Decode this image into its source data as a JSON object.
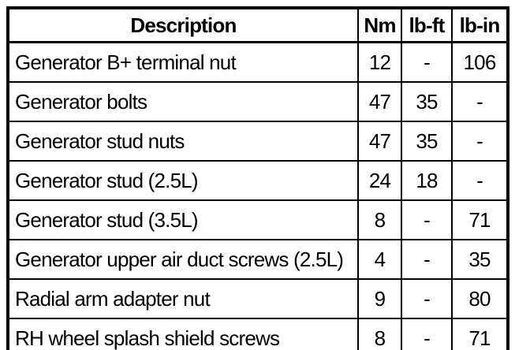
{
  "table": {
    "headers": {
      "description": "Description",
      "nm": "Nm",
      "lbft": "lb-ft",
      "lbin": "lb-in"
    },
    "rows": [
      {
        "description": "Generator B+ terminal nut",
        "nm": "12",
        "lbft": "-",
        "lbin": "106"
      },
      {
        "description": "Generator bolts",
        "nm": "47",
        "lbft": "35",
        "lbin": "-"
      },
      {
        "description": "Generator stud nuts",
        "nm": "47",
        "lbft": "35",
        "lbin": "-"
      },
      {
        "description": "Generator stud (2.5L)",
        "nm": "24",
        "lbft": "18",
        "lbin": "-"
      },
      {
        "description": "Generator stud (3.5L)",
        "nm": "8",
        "lbft": "-",
        "lbin": "71"
      },
      {
        "description": "Generator upper air duct screws (2.5L)",
        "nm": "4",
        "lbft": "-",
        "lbin": "35"
      },
      {
        "description": "Radial arm adapter nut",
        "nm": "9",
        "lbft": "-",
        "lbin": "80"
      },
      {
        "description": "RH wheel splash shield screws",
        "nm": "8",
        "lbft": "-",
        "lbin": "71"
      }
    ],
    "colors": {
      "border": "#000000",
      "background": "#ffffff",
      "text": "#000000"
    }
  }
}
